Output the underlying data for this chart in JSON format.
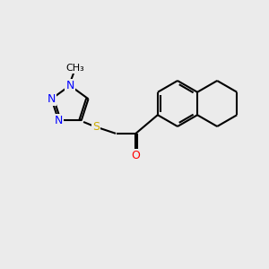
{
  "bg_color": "#ebebeb",
  "atom_colors": {
    "N": "#0000ff",
    "S": "#ccaa00",
    "O": "#ff0000",
    "C": "#000000"
  },
  "bond_color": "#000000",
  "bond_width": 1.5,
  "font_size_atom": 9,
  "font_size_methyl": 8
}
